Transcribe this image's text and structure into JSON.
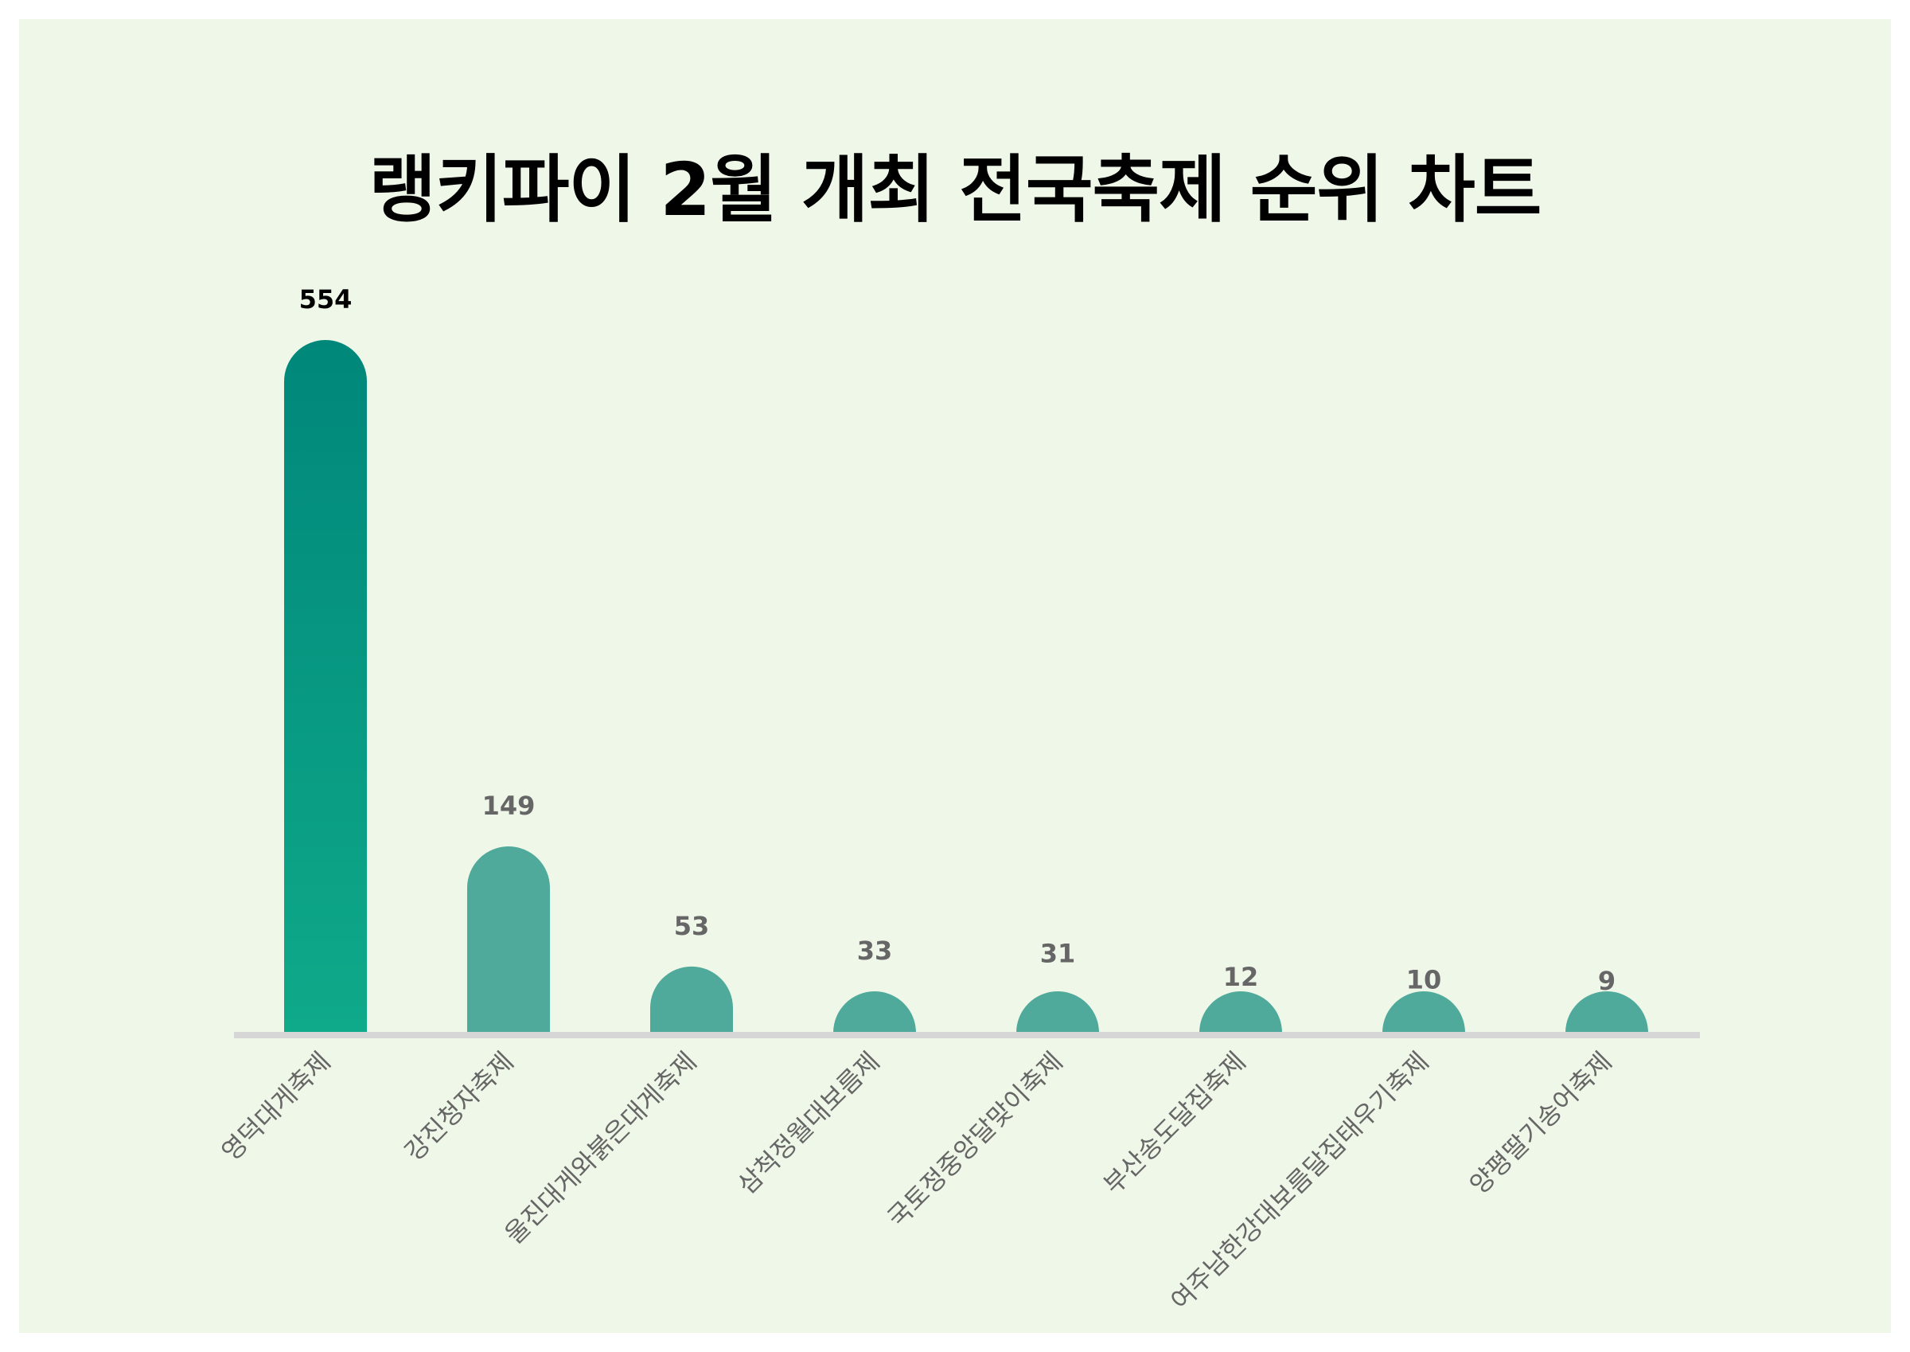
{
  "chart_data": {
    "type": "bar",
    "title": "랭키파이 2월 개최 전국축제 순위 차트",
    "categories": [
      "영덕대게축제",
      "강진청자축제",
      "울진대게와붉은대게축제",
      "삼척정월대보름제",
      "국토정중앙달맞이축제",
      "부산송도달집축제",
      "여주남한강대보름달집태우기축제",
      "양평딸기송어축제"
    ],
    "values": [
      554,
      149,
      53,
      33,
      31,
      12,
      10,
      9
    ],
    "value_labels": [
      "554",
      "149",
      "53",
      "33",
      "31",
      "12",
      "10",
      "9"
    ],
    "xlabel": "",
    "ylabel": "",
    "ylim": [
      0,
      554
    ],
    "grid": false,
    "legend": "none",
    "colors": {
      "background": "#eef7e8",
      "top_bar_gradient_top": "#00877a",
      "top_bar_gradient_bottom": "#0faa8a",
      "bar": "#50aa9b",
      "baseline": "#d6d6d6",
      "top_value_label": "#000000",
      "value_label": "#666666",
      "category_label": "#666666"
    }
  }
}
